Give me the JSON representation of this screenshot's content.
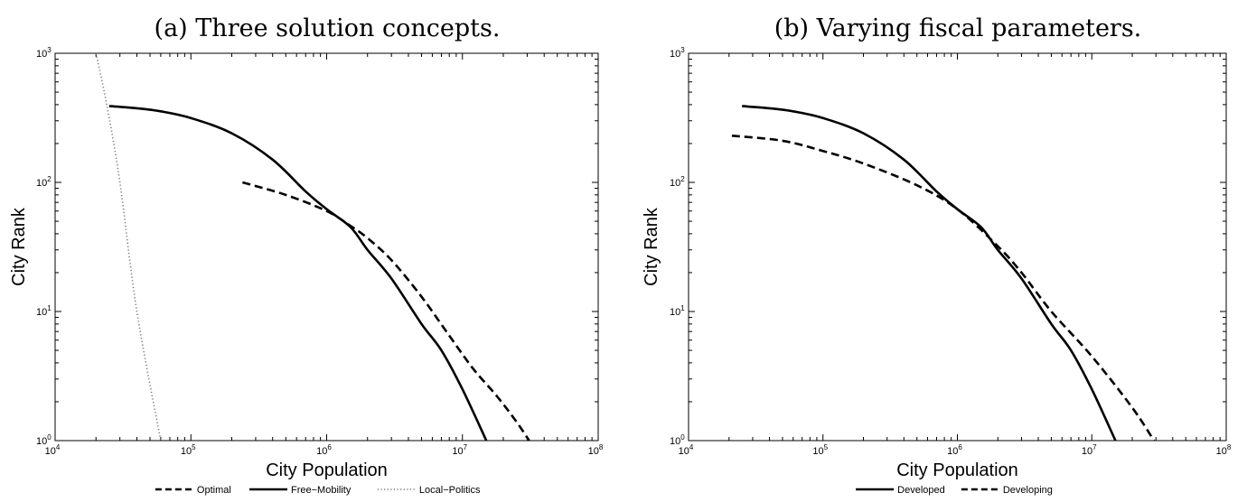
{
  "chart_data": [
    {
      "type": "line",
      "title": "(a) Three solution concepts.",
      "xlabel": "City Population",
      "ylabel": "City Rank",
      "xscale": "log",
      "yscale": "log",
      "xlim": [
        10000,
        100000000
      ],
      "ylim": [
        1,
        1000
      ],
      "x_ticks": [
        {
          "base": "10",
          "exp": "4",
          "value": 10000
        },
        {
          "base": "10",
          "exp": "5",
          "value": 100000
        },
        {
          "base": "10",
          "exp": "6",
          "value": 1000000
        },
        {
          "base": "10",
          "exp": "7",
          "value": 10000000
        },
        {
          "base": "10",
          "exp": "8",
          "value": 100000000
        }
      ],
      "y_ticks": [
        {
          "base": "10",
          "exp": "0",
          "value": 1
        },
        {
          "base": "10",
          "exp": "1",
          "value": 10
        },
        {
          "base": "10",
          "exp": "2",
          "value": 100
        },
        {
          "base": "10",
          "exp": "3",
          "value": 1000
        }
      ],
      "grid": false,
      "legend_position": "bottom-center",
      "series": [
        {
          "name": "Optimal",
          "style": "dashed",
          "color": "#000000",
          "points": [
            [
              240000,
              100
            ],
            [
              500000,
              80
            ],
            [
              1000000,
              60
            ],
            [
              1500000,
              46
            ],
            [
              2000000,
              37
            ],
            [
              3000000,
              25
            ],
            [
              5000000,
              13
            ],
            [
              8000000,
              6.5
            ],
            [
              12000000,
              3.6
            ],
            [
              18000000,
              2.2
            ],
            [
              25000000,
              1.4
            ],
            [
              31000000,
              1.0
            ]
          ]
        },
        {
          "name": "Free−Mobility",
          "style": "solid",
          "color": "#000000",
          "points": [
            [
              25000,
              390
            ],
            [
              40000,
              375
            ],
            [
              60000,
              355
            ],
            [
              100000,
              315
            ],
            [
              200000,
              240
            ],
            [
              400000,
              150
            ],
            [
              700000,
              85
            ],
            [
              1000000,
              62
            ],
            [
              1500000,
              45
            ],
            [
              2000000,
              30
            ],
            [
              3000000,
              18
            ],
            [
              5000000,
              8
            ],
            [
              7000000,
              5
            ],
            [
              10000000,
              2.5
            ],
            [
              15000000,
              1.0
            ]
          ]
        },
        {
          "name": "Local−Politics",
          "style": "dotted",
          "color": "#7a7a7a",
          "points": [
            [
              20000,
              1000
            ],
            [
              24000,
              400
            ],
            [
              30000,
              100
            ],
            [
              40000,
              10
            ],
            [
              60000,
              1.0
            ]
          ]
        }
      ]
    },
    {
      "type": "line",
      "title": "(b) Varying fiscal parameters.",
      "xlabel": "City Population",
      "ylabel": "City Rank",
      "xscale": "log",
      "yscale": "log",
      "xlim": [
        10000,
        100000000
      ],
      "ylim": [
        1,
        1000
      ],
      "x_ticks": [
        {
          "base": "10",
          "exp": "4",
          "value": 10000
        },
        {
          "base": "10",
          "exp": "5",
          "value": 100000
        },
        {
          "base": "10",
          "exp": "6",
          "value": 1000000
        },
        {
          "base": "10",
          "exp": "7",
          "value": 10000000
        },
        {
          "base": "10",
          "exp": "8",
          "value": 100000000
        }
      ],
      "y_ticks": [
        {
          "base": "10",
          "exp": "0",
          "value": 1
        },
        {
          "base": "10",
          "exp": "1",
          "value": 10
        },
        {
          "base": "10",
          "exp": "2",
          "value": 100
        },
        {
          "base": "10",
          "exp": "3",
          "value": 1000
        }
      ],
      "grid": false,
      "legend_position": "bottom-center",
      "series": [
        {
          "name": "Developed",
          "style": "solid",
          "color": "#000000",
          "points": [
            [
              25000,
              390
            ],
            [
              40000,
              375
            ],
            [
              60000,
              355
            ],
            [
              100000,
              315
            ],
            [
              200000,
              240
            ],
            [
              400000,
              150
            ],
            [
              700000,
              85
            ],
            [
              1000000,
              62
            ],
            [
              1500000,
              45
            ],
            [
              2000000,
              30
            ],
            [
              3000000,
              18
            ],
            [
              5000000,
              8
            ],
            [
              7000000,
              5
            ],
            [
              10000000,
              2.5
            ],
            [
              15000000,
              1.0
            ]
          ]
        },
        {
          "name": "Developing",
          "style": "dashed",
          "color": "#000000",
          "points": [
            [
              21000,
              230
            ],
            [
              50000,
              210
            ],
            [
              100000,
              175
            ],
            [
              200000,
              140
            ],
            [
              500000,
              95
            ],
            [
              1000000,
              62
            ],
            [
              2000000,
              32
            ],
            [
              3000000,
              20
            ],
            [
              5000000,
              10
            ],
            [
              10000000,
              4.5
            ],
            [
              20000000,
              1.8
            ],
            [
              29000000,
              1.0
            ]
          ]
        }
      ]
    }
  ]
}
